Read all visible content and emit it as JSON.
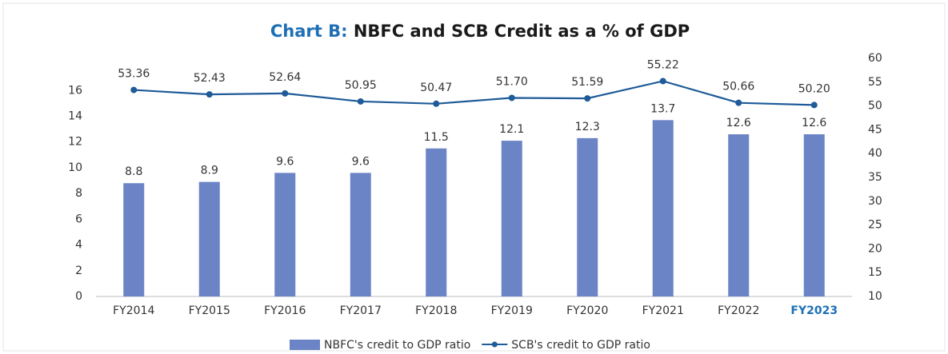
{
  "chart_data": {
    "type": "bar",
    "title": [
      "Chart B:",
      "NBFC and SCB Credit as a % of GDP"
    ],
    "categories": [
      "FY2014",
      "FY2015",
      "FY2016",
      "FY2017",
      "FY2018",
      "FY2019",
      "FY2020",
      "FY2021",
      "FY2022",
      "FY2023"
    ],
    "series": [
      {
        "name": "NBFC's credit to GDP ratio",
        "type": "bar",
        "color": "#6b84c6",
        "values": [
          8.8,
          8.9,
          9.6,
          9.6,
          11.5,
          12.1,
          12.3,
          13.7,
          12.6,
          12.6
        ]
      },
      {
        "name": "SCB's credit to GDP ratio",
        "type": "line",
        "axis": "y2",
        "color": "#1f5b98",
        "values": [
          53.36,
          52.43,
          52.64,
          50.95,
          50.47,
          51.7,
          51.59,
          55.22,
          50.66,
          50.2
        ],
        "value_labels": [
          "53.36",
          "52.43",
          "52.64",
          "50.95",
          "50.47",
          "51.70",
          "51.59",
          "55.22",
          "50.66",
          "50.20"
        ]
      }
    ],
    "ylim": [
      0,
      18.5
    ],
    "yticks": [
      0,
      2,
      4,
      6,
      8,
      10,
      12,
      14,
      16
    ],
    "y2lim": [
      10,
      60
    ],
    "y2ticks": [
      10,
      15,
      20,
      25,
      30,
      35,
      40,
      45,
      50,
      55,
      60
    ],
    "legend": "bottom"
  }
}
